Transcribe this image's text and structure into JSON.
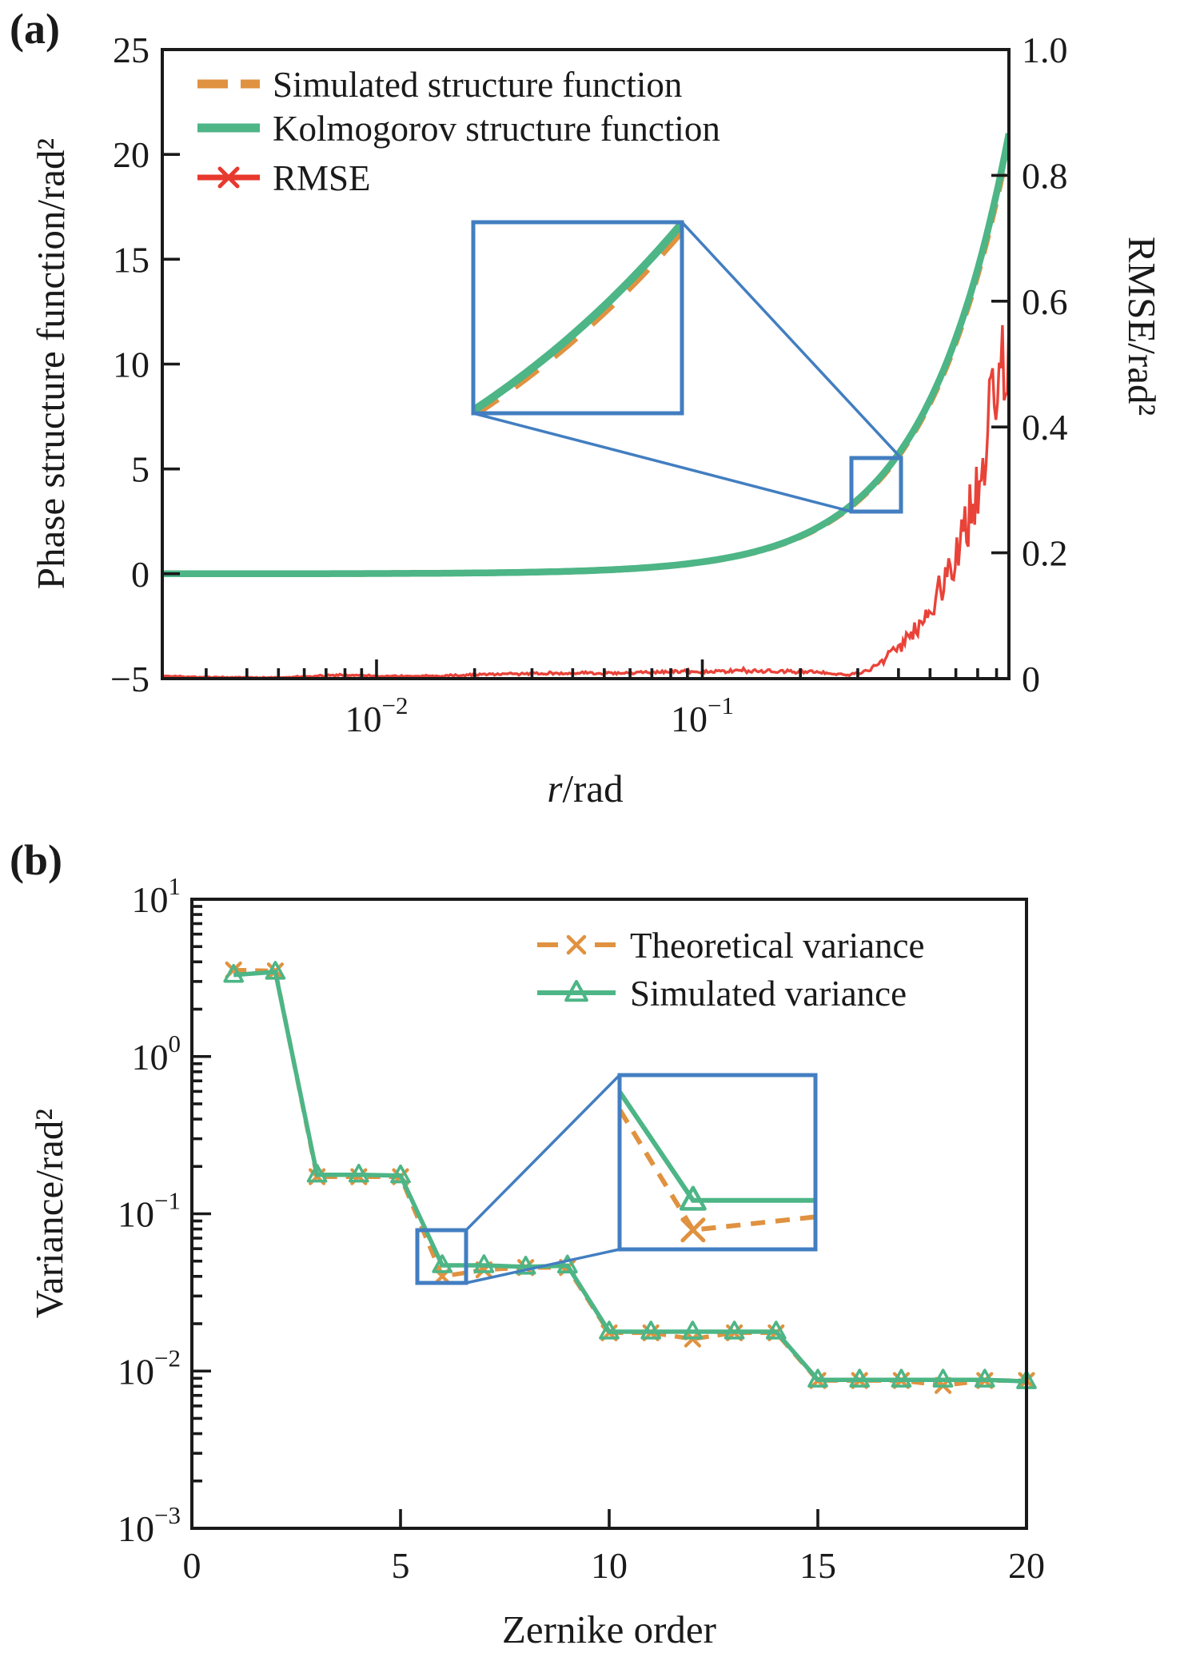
{
  "colors": {
    "orange": "#E09240",
    "green": "#4DB586",
    "red": "#E8392E",
    "blue": "#427EC1",
    "ink": "#1A1A1A"
  },
  "figure": {
    "panels": [
      {
        "tag": "(a)",
        "x_axis": {
          "label_italic": "r",
          "label_rest": "/rad",
          "ticks": [
            {
              "base": "10",
              "exp": "−2"
            },
            {
              "base": "10",
              "exp": "−1"
            }
          ]
        },
        "y_left": {
          "label": "Phase structure function/rad²",
          "ticks": [
            "25",
            "20",
            "15",
            "10",
            "5",
            "0",
            "−5"
          ]
        },
        "y_right": {
          "label": "RMSE/rad²",
          "ticks": [
            "1.0",
            "0.8",
            "0.6",
            "0.4",
            "0.2",
            "0"
          ]
        },
        "legend": [
          {
            "label": "Simulated structure function",
            "color_key": "orange",
            "style": "dashed"
          },
          {
            "label": "Kolmogorov structure function",
            "color_key": "green",
            "style": "solid"
          },
          {
            "label": "RMSE",
            "color_key": "red",
            "style": "line-x"
          }
        ]
      },
      {
        "tag": "(b)",
        "x_axis": {
          "label": "Zernike order",
          "ticks": [
            "0",
            "5",
            "10",
            "15",
            "20"
          ]
        },
        "y_left": {
          "label": "Variance/rad²",
          "ticks": [
            {
              "base": "10",
              "exp": "1"
            },
            {
              "base": "10",
              "exp": "0"
            },
            {
              "base": "10",
              "exp": "−1"
            },
            {
              "base": "10",
              "exp": "−2"
            },
            {
              "base": "10",
              "exp": "−3"
            }
          ]
        },
        "legend": [
          {
            "label": "Theoretical variance",
            "color_key": "orange",
            "style": "dash-x"
          },
          {
            "label": "Simulated variance",
            "color_key": "green",
            "style": "line-triangle"
          }
        ]
      }
    ]
  },
  "chart_data": [
    {
      "type": "line",
      "panel": "a",
      "x_scale": "log",
      "x_range": [
        0.0022,
        0.873
      ],
      "x_ticks": [
        0.01,
        0.1
      ],
      "y_left_range": [
        -5,
        25
      ],
      "y_left_ticks": [
        25,
        20,
        15,
        10,
        5,
        0,
        -5
      ],
      "y_right_range": [
        0,
        1.0
      ],
      "y_right_ticks": [
        1.0,
        0.8,
        0.6,
        0.4,
        0.2,
        0
      ],
      "series": [
        {
          "name": "Simulated structure function",
          "axis": "left",
          "style": "dashed",
          "color_key": "orange",
          "model": "kolmogorov_times_scale",
          "scale": 0.985
        },
        {
          "name": "Kolmogorov structure function",
          "axis": "left",
          "style": "solid",
          "color_key": "green",
          "model": "6.88*(r/r0)^(5/3)",
          "r0": 0.447,
          "value_at_x_max": 21.0
        },
        {
          "name": "RMSE",
          "axis": "right",
          "style": "noisy",
          "color_key": "red",
          "anchors_r": [
            0.0022,
            0.003,
            0.005,
            0.008,
            0.01,
            0.015,
            0.02,
            0.03,
            0.05,
            0.08,
            0.12,
            0.18,
            0.22,
            0.28,
            0.32,
            0.36,
            0.42,
            0.5,
            0.58,
            0.66,
            0.75,
            0.82,
            0.873
          ],
          "anchors_value": [
            0.004,
            0.002,
            0.0015,
            0.006,
            0.004,
            0.004,
            0.006,
            0.008,
            0.009,
            0.011,
            0.012,
            0.012,
            0.01,
            0.006,
            0.012,
            0.03,
            0.06,
            0.11,
            0.18,
            0.27,
            0.38,
            0.47,
            0.54
          ],
          "noise_fraction": 0.14
        }
      ],
      "zoom_inset": {
        "marked_region_x": [
          0.287,
          0.407
        ],
        "marked_region_y": [
          3.0,
          5.5
        ],
        "inset_view_x": [
          0.287,
          0.407
        ],
        "inset_view_y": [
          3.25,
          5.9
        ]
      }
    },
    {
      "type": "line",
      "panel": "b",
      "x_range": [
        0,
        20
      ],
      "x_ticks": [
        0,
        5,
        10,
        15,
        20
      ],
      "y_scale": "log",
      "y_range": [
        0.001,
        10
      ],
      "y_ticks": [
        10,
        1,
        0.1,
        0.01,
        0.001
      ],
      "categories": [
        1,
        2,
        3,
        4,
        5,
        6,
        7,
        8,
        9,
        10,
        11,
        12,
        13,
        14,
        15,
        16,
        17,
        18,
        19,
        20
      ],
      "series": [
        {
          "name": "Theoretical variance",
          "color_key": "orange",
          "style": "dashed",
          "marker": "x",
          "values": [
            3.55,
            3.5,
            0.172,
            0.172,
            0.172,
            0.04,
            0.044,
            0.0455,
            0.0455,
            0.0175,
            0.0175,
            0.016,
            0.0175,
            0.0175,
            0.0087,
            0.0087,
            0.0087,
            0.0081,
            0.0087,
            0.0087
          ]
        },
        {
          "name": "Simulated variance",
          "color_key": "green",
          "style": "solid",
          "marker": "triangle",
          "values": [
            3.3,
            3.45,
            0.177,
            0.177,
            0.175,
            0.047,
            0.047,
            0.046,
            0.0468,
            0.0178,
            0.0178,
            0.0178,
            0.0178,
            0.0178,
            0.0088,
            0.0088,
            0.0088,
            0.0088,
            0.0088,
            0.0086
          ]
        }
      ],
      "zoom_inset": {
        "marked_region_x": [
          5.4,
          6.57
        ],
        "marked_region_y": [
          0.0365,
          0.079
        ],
        "inset_view_x": [
          5.55,
          6.75
        ],
        "inset_view_y": [
          0.036,
          0.093
        ]
      }
    }
  ]
}
